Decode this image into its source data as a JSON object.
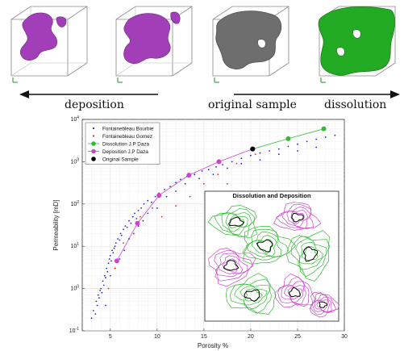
{
  "captions": {
    "deposition": "deposition",
    "original": "original sample",
    "dissolution": "dissolution"
  },
  "colors": {
    "deposition": "#cc44cc",
    "dissolution": "#33bb33",
    "original": "#000000",
    "bourbie": "#2222cc",
    "gomez": "#ee2222",
    "cube_purple": "#a23fb8",
    "cube_gray": "#6e6e6e",
    "cube_green": "#22aa22"
  },
  "chart_data": {
    "type": "scatter",
    "xlabel": "Porosity %",
    "ylabel": "Permeability [mD]",
    "xlim": [
      2,
      30
    ],
    "ylim": [
      0.1,
      10000
    ],
    "yscale": "log",
    "xticks": [
      5,
      10,
      15,
      20,
      25,
      30
    ],
    "yticks": [
      "10^{-1}",
      "10^{0}",
      "10^{1}",
      "10^{2}",
      "10^{3}",
      "10^{4}"
    ],
    "grid": true,
    "legend_position": "top-left",
    "series": [
      {
        "name": "Fontainebleau Bourbie",
        "marker": "dot",
        "color": "#2222cc",
        "points": [
          [
            3.0,
            0.2
          ],
          [
            3.2,
            0.3
          ],
          [
            3.4,
            0.25
          ],
          [
            3.5,
            0.5
          ],
          [
            3.6,
            0.4
          ],
          [
            3.7,
            0.7
          ],
          [
            3.8,
            0.6
          ],
          [
            3.9,
            0.9
          ],
          [
            4.0,
            1.0
          ],
          [
            4.1,
            0.8
          ],
          [
            4.2,
            1.5
          ],
          [
            4.3,
            1.2
          ],
          [
            4.4,
            2.0
          ],
          [
            4.5,
            1.8
          ],
          [
            4.6,
            3.0
          ],
          [
            4.7,
            2.5
          ],
          [
            4.8,
            4.0
          ],
          [
            4.9,
            5.0
          ],
          [
            5.0,
            6.0
          ],
          [
            5.1,
            4.5
          ],
          [
            5.2,
            8.0
          ],
          [
            5.3,
            7.0
          ],
          [
            5.4,
            9.0
          ],
          [
            5.5,
            10.0
          ],
          [
            5.6,
            12.0
          ],
          [
            5.8,
            15.0
          ],
          [
            6.0,
            14.0
          ],
          [
            6.1,
            20.0
          ],
          [
            6.2,
            18.0
          ],
          [
            6.4,
            25.0
          ],
          [
            6.6,
            30.0
          ],
          [
            6.8,
            28.0
          ],
          [
            7.0,
            40.0
          ],
          [
            7.2,
            35.0
          ],
          [
            7.4,
            50.0
          ],
          [
            7.6,
            60.0
          ],
          [
            7.8,
            45.0
          ],
          [
            8.0,
            70.0
          ],
          [
            8.3,
            80.0
          ],
          [
            8.6,
            100.0
          ],
          [
            9.0,
            120.0
          ],
          [
            9.4,
            110.0
          ],
          [
            9.8,
            150.0
          ],
          [
            10.2,
            180.0
          ],
          [
            10.8,
            220.0
          ],
          [
            11.4,
            260.0
          ],
          [
            12.0,
            320.0
          ],
          [
            12.5,
            380.0
          ],
          [
            13.2,
            450.0
          ],
          [
            14.0,
            500.0
          ],
          [
            14.8,
            600.0
          ],
          [
            15.5,
            650.0
          ],
          [
            16.3,
            750.0
          ],
          [
            17.0,
            850.0
          ],
          [
            18.0,
            1000.0
          ],
          [
            19.0,
            1200.0
          ],
          [
            20.0,
            1400.0
          ],
          [
            21.0,
            1600.0
          ],
          [
            22.0,
            1800.0
          ],
          [
            23.0,
            2000.0
          ],
          [
            24.0,
            2300.0
          ],
          [
            25.0,
            2600.0
          ],
          [
            26.0,
            3000.0
          ],
          [
            27.0,
            3400.0
          ],
          [
            28.0,
            3800.0
          ],
          [
            29.0,
            4200.0
          ],
          [
            4.5,
            0.4
          ],
          [
            5.0,
            2.0
          ],
          [
            5.5,
            3.0
          ],
          [
            6.0,
            5.0
          ],
          [
            6.5,
            8.0
          ],
          [
            7.0,
            15.0
          ],
          [
            7.5,
            20.0
          ],
          [
            8.0,
            30.0
          ],
          [
            8.5,
            40.0
          ],
          [
            9.0,
            60.0
          ],
          [
            10.0,
            80.0
          ],
          [
            11.0,
            150.0
          ],
          [
            12.0,
            200.0
          ],
          [
            13.0,
            300.0
          ],
          [
            14.5,
            400.0
          ],
          [
            16.0,
            500.0
          ],
          [
            17.5,
            700.0
          ],
          [
            19.0,
            900.0
          ],
          [
            21.0,
            1100.0
          ],
          [
            23.0,
            1500.0
          ],
          [
            25.0,
            1800.0
          ],
          [
            27.0,
            2200.0
          ]
        ]
      },
      {
        "name": "Fontainebleau Gomez",
        "marker": "dot",
        "color": "#ee2222",
        "points": [
          [
            4.8,
            1.0
          ],
          [
            5.5,
            3.0
          ],
          [
            6.4,
            12.0
          ],
          [
            7.5,
            20.0
          ],
          [
            8.2,
            50.0
          ],
          [
            9.5,
            80.0
          ],
          [
            10.5,
            50.0
          ],
          [
            12.0,
            90.0
          ],
          [
            13.5,
            150.0
          ],
          [
            15.0,
            300.0
          ],
          [
            16.5,
            500.0
          ],
          [
            17.5,
            300.0
          ],
          [
            18.5,
            900.0
          ],
          [
            20.5,
            1500.0
          ]
        ]
      },
      {
        "name": "Dissolution J.P Daza",
        "marker": "circle",
        "color": "#33bb33",
        "points": [
          [
            20.2,
            2000
          ],
          [
            24.0,
            3500
          ],
          [
            27.8,
            6000
          ]
        ]
      },
      {
        "name": "Deposition J.P Daza",
        "marker": "circle",
        "color": "#cc44cc",
        "points": [
          [
            5.7,
            4.5
          ],
          [
            7.9,
            35
          ],
          [
            10.2,
            160
          ],
          [
            13.4,
            480
          ],
          [
            16.6,
            1000
          ],
          [
            20.2,
            2000
          ]
        ]
      },
      {
        "name": "Original Sample",
        "marker": "circle",
        "color": "#000000",
        "points": [
          [
            20.2,
            2000
          ]
        ]
      }
    ]
  },
  "inset": {
    "title": "Dissolution and Deposition"
  }
}
